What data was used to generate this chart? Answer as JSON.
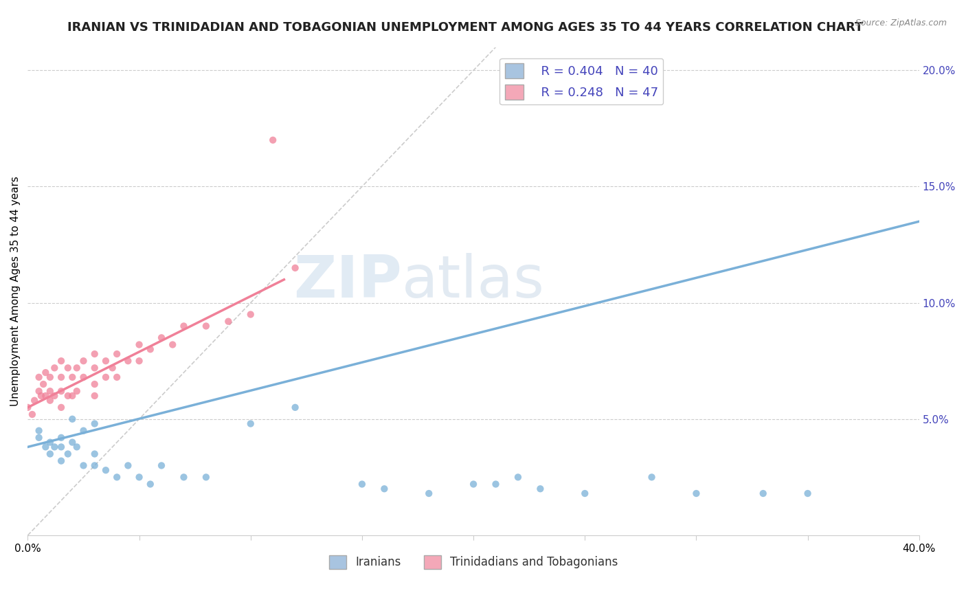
{
  "title": "IRANIAN VS TRINIDADIAN AND TOBAGONIAN UNEMPLOYMENT AMONG AGES 35 TO 44 YEARS CORRELATION CHART",
  "source_text": "Source: ZipAtlas.com",
  "ylabel": "Unemployment Among Ages 35 to 44 years",
  "xlim": [
    0.0,
    0.4
  ],
  "ylim": [
    0.0,
    0.21
  ],
  "xticks": [
    0.0,
    0.05,
    0.1,
    0.15,
    0.2,
    0.25,
    0.3,
    0.35,
    0.4
  ],
  "yticks": [
    0.0,
    0.05,
    0.1,
    0.15,
    0.2
  ],
  "legend_entries": [
    {
      "label": "Iranians",
      "color": "#a8c4e0",
      "R": 0.404,
      "N": 40
    },
    {
      "label": "Trinidadians and Tobagonians",
      "color": "#f4a8b8",
      "R": 0.248,
      "N": 47
    }
  ],
  "iranian_scatter_x": [
    0.005,
    0.005,
    0.008,
    0.01,
    0.01,
    0.012,
    0.015,
    0.015,
    0.015,
    0.018,
    0.02,
    0.02,
    0.022,
    0.025,
    0.025,
    0.03,
    0.03,
    0.03,
    0.035,
    0.04,
    0.045,
    0.05,
    0.055,
    0.06,
    0.07,
    0.08,
    0.1,
    0.12,
    0.15,
    0.16,
    0.18,
    0.2,
    0.21,
    0.22,
    0.23,
    0.25,
    0.28,
    0.3,
    0.33,
    0.35
  ],
  "iranian_scatter_y": [
    0.045,
    0.042,
    0.038,
    0.035,
    0.04,
    0.038,
    0.032,
    0.038,
    0.042,
    0.035,
    0.04,
    0.05,
    0.038,
    0.03,
    0.045,
    0.03,
    0.035,
    0.048,
    0.028,
    0.025,
    0.03,
    0.025,
    0.022,
    0.03,
    0.025,
    0.025,
    0.048,
    0.055,
    0.022,
    0.02,
    0.018,
    0.022,
    0.022,
    0.025,
    0.02,
    0.018,
    0.025,
    0.018,
    0.018,
    0.018
  ],
  "trinidadian_scatter_x": [
    0.0,
    0.002,
    0.003,
    0.005,
    0.005,
    0.006,
    0.007,
    0.008,
    0.008,
    0.01,
    0.01,
    0.01,
    0.012,
    0.012,
    0.015,
    0.015,
    0.015,
    0.015,
    0.018,
    0.018,
    0.02,
    0.02,
    0.022,
    0.022,
    0.025,
    0.025,
    0.03,
    0.03,
    0.03,
    0.03,
    0.035,
    0.035,
    0.038,
    0.04,
    0.04,
    0.045,
    0.05,
    0.05,
    0.055,
    0.06,
    0.065,
    0.07,
    0.08,
    0.09,
    0.1,
    0.11,
    0.12
  ],
  "trinidadian_scatter_y": [
    0.055,
    0.052,
    0.058,
    0.062,
    0.068,
    0.06,
    0.065,
    0.06,
    0.07,
    0.058,
    0.062,
    0.068,
    0.06,
    0.072,
    0.055,
    0.062,
    0.068,
    0.075,
    0.06,
    0.072,
    0.06,
    0.068,
    0.062,
    0.072,
    0.068,
    0.075,
    0.06,
    0.065,
    0.072,
    0.078,
    0.068,
    0.075,
    0.072,
    0.068,
    0.078,
    0.075,
    0.075,
    0.082,
    0.08,
    0.085,
    0.082,
    0.09,
    0.09,
    0.092,
    0.095,
    0.17,
    0.115
  ],
  "iranian_line_x": [
    0.0,
    0.4
  ],
  "iranian_line_y": [
    0.038,
    0.135
  ],
  "trinidadian_line_x": [
    0.0,
    0.115
  ],
  "trinidadian_line_y": [
    0.055,
    0.11
  ],
  "diagonal_line_x": [
    0.0,
    0.21
  ],
  "diagonal_line_y": [
    0.0,
    0.21
  ],
  "scatter_size": 55,
  "scatter_alpha": 0.75,
  "watermark_left": "ZIP",
  "watermark_right": "atlas",
  "watermark_color": "#c8d8e8",
  "background_color": "#ffffff",
  "grid_color": "#cccccc",
  "iranian_color": "#7ab0d8",
  "trinidadian_color": "#f08098",
  "legend_box_blue": "#a8c4e0",
  "legend_box_pink": "#f4a8b8",
  "legend_text_color": "#4444bb",
  "title_fontsize": 13,
  "axis_label_fontsize": 11
}
